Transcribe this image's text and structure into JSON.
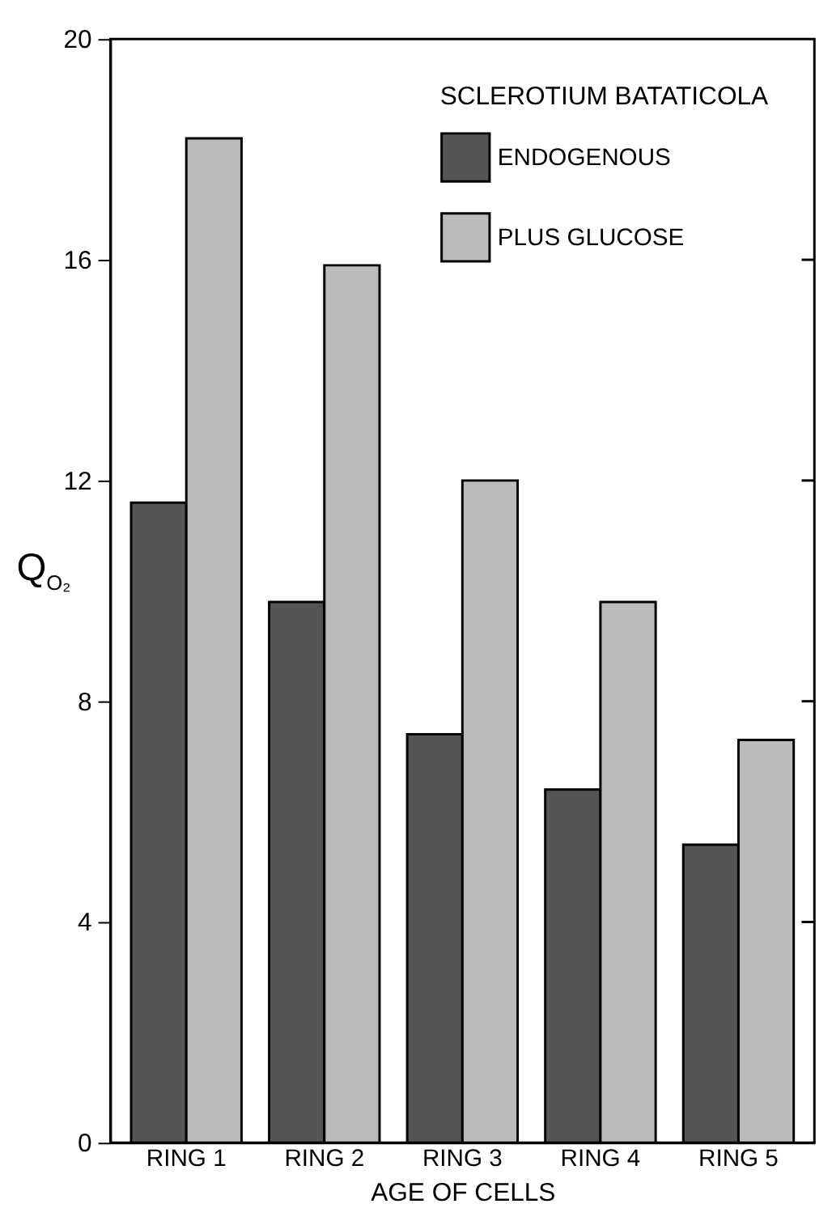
{
  "chart_data": {
    "type": "bar",
    "xlabel": "AGE OF CELLS",
    "ylabel": "Q$_{O₂}$",
    "legend_title": "SCLEROTIUM BATATICOLA",
    "categories": [
      "RING 1",
      "RING 2",
      "RING 3",
      "RING 4",
      "RING 5"
    ],
    "series": [
      {
        "name": "ENDOGENOUS",
        "color": "#555555",
        "values": [
          11.6,
          9.8,
          7.4,
          6.4,
          5.4
        ]
      },
      {
        "name": "PLUS GLUCOSE",
        "color": "#bbbbbb",
        "values": [
          18.2,
          15.9,
          12.0,
          9.8,
          7.3
        ]
      }
    ],
    "ylim": [
      0,
      20
    ],
    "yticks": [
      0,
      4,
      8,
      12,
      16,
      20
    ],
    "legend": "top right"
  }
}
